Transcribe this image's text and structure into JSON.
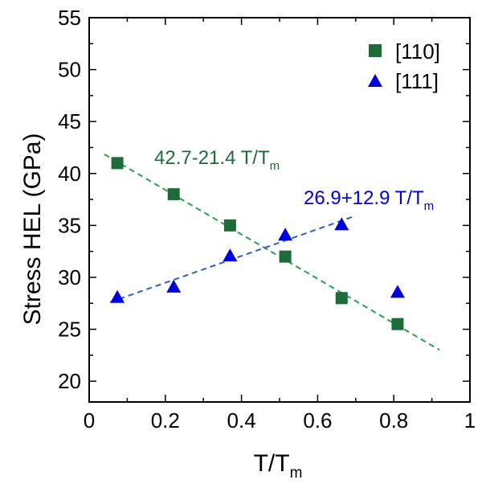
{
  "chart_data": {
    "type": "scatter",
    "title": "",
    "xlabel": {
      "main": "T/T",
      "sub": "m"
    },
    "ylabel": "Stress HEL (GPa)",
    "xlim": [
      0,
      1
    ],
    "ylim": [
      18,
      55
    ],
    "grid": false,
    "legend_position": "top-right",
    "x_major_ticks": [
      0,
      0.2,
      0.4,
      0.6,
      0.8,
      1
    ],
    "x_tick_labels": [
      "0",
      "0.2",
      "0.4",
      "0.6",
      "0.8",
      "1"
    ],
    "y_major_ticks": [
      20,
      25,
      30,
      35,
      40,
      45,
      50,
      55
    ],
    "y_tick_labels": [
      "20",
      "25",
      "30",
      "35",
      "40",
      "45",
      "50",
      "55"
    ],
    "series": [
      {
        "name": "[110]",
        "marker": "square",
        "color": "#1e6b3a",
        "x": [
          0.074,
          0.222,
          0.37,
          0.515,
          0.663,
          0.81
        ],
        "y": [
          41.0,
          38.0,
          35.0,
          32.0,
          28.0,
          25.5
        ],
        "fit": {
          "intercept": 42.7,
          "slope": -21.4,
          "x_range": [
            0.04,
            0.92
          ],
          "color": "#22a24a",
          "label": {
            "main": "42.7-21.4 T/T",
            "sub": "m"
          }
        }
      },
      {
        "name": "[111]",
        "marker": "triangle",
        "color": "#0000dd",
        "x": [
          0.074,
          0.222,
          0.37,
          0.515,
          0.663,
          0.81
        ],
        "y": [
          28.0,
          29.0,
          32.0,
          34.0,
          35.0,
          28.5
        ],
        "fit": {
          "intercept": 26.9,
          "slope": 12.9,
          "x_range": [
            0.055,
            0.7
          ],
          "color": "#2a60cc",
          "label": {
            "main": "26.9+12.9 T/T",
            "sub": "m"
          }
        }
      }
    ]
  }
}
